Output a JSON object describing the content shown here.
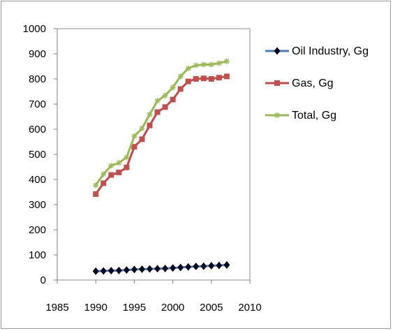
{
  "chart_data": {
    "type": "line",
    "title": "",
    "xlabel": "",
    "ylabel": "",
    "xlim": [
      1985,
      2010
    ],
    "ylim": [
      0,
      1000
    ],
    "x_ticks": [
      1985,
      1990,
      1995,
      2000,
      2005,
      2010
    ],
    "y_ticks": [
      0,
      100,
      200,
      300,
      400,
      500,
      600,
      700,
      800,
      900,
      1000
    ],
    "grid": false,
    "legend_position": "right",
    "x": [
      1990,
      1991,
      1992,
      1993,
      1994,
      1995,
      1996,
      1997,
      1998,
      1999,
      2000,
      2001,
      2002,
      2003,
      2004,
      2005,
      2006,
      2007
    ],
    "series": [
      {
        "name": "Oil Industry, Gg",
        "color": "#4a7ebb",
        "marker": "diamond",
        "marker_color": "#0a0a1e",
        "values": [
          35,
          36,
          37,
          38,
          40,
          42,
          43,
          44,
          45,
          46,
          48,
          50,
          52,
          54,
          55,
          57,
          58,
          60
        ]
      },
      {
        "name": "Gas, Gg",
        "color": "#be4b48",
        "marker": "square",
        "marker_color": "#c0504d",
        "values": [
          342,
          385,
          418,
          428,
          448,
          530,
          560,
          615,
          668,
          688,
          718,
          760,
          790,
          800,
          802,
          800,
          805,
          810
        ]
      },
      {
        "name": "Total, Gg",
        "color": "#98b954",
        "marker": "star",
        "marker_color": "#9bbb59",
        "values": [
          377,
          421,
          455,
          466,
          488,
          572,
          603,
          659,
          713,
          734,
          766,
          810,
          842,
          854,
          857,
          857,
          863,
          870
        ]
      }
    ]
  }
}
